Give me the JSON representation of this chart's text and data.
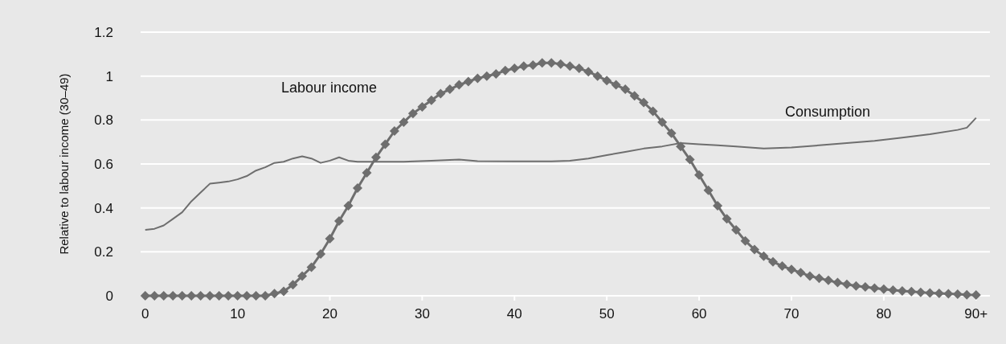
{
  "chart_data": {
    "type": "line",
    "ylabel": "Relative to labour income (30–49)",
    "xlim": [
      -0.5,
      91.5
    ],
    "xticks": [
      0,
      10,
      20,
      30,
      40,
      50,
      60,
      70,
      80,
      {
        "value": 90,
        "label": "90+"
      }
    ],
    "ylim": [
      0,
      1.2
    ],
    "yticks": [
      0,
      0.2,
      0.4,
      0.6,
      0.8,
      1,
      1.2
    ],
    "grid": "y",
    "series": [
      {
        "name": "Labour income",
        "color": "#6e6e6e",
        "marker": "diamond",
        "x": [
          0,
          1,
          2,
          3,
          4,
          5,
          6,
          7,
          8,
          9,
          10,
          11,
          12,
          13,
          14,
          15,
          16,
          17,
          18,
          19,
          20,
          21,
          22,
          23,
          24,
          25,
          26,
          27,
          28,
          29,
          30,
          31,
          32,
          33,
          34,
          35,
          36,
          37,
          38,
          39,
          40,
          41,
          42,
          43,
          44,
          45,
          46,
          47,
          48,
          49,
          50,
          51,
          52,
          53,
          54,
          55,
          56,
          57,
          58,
          59,
          60,
          61,
          62,
          63,
          64,
          65,
          66,
          67,
          68,
          69,
          70,
          71,
          72,
          73,
          74,
          75,
          76,
          77,
          78,
          79,
          80,
          81,
          82,
          83,
          84,
          85,
          86,
          87,
          88,
          89,
          90
        ],
        "values": [
          0,
          0,
          0,
          0,
          0,
          0,
          0,
          0,
          0,
          0,
          0,
          0,
          0,
          0,
          0.01,
          0.02,
          0.05,
          0.09,
          0.13,
          0.19,
          0.26,
          0.34,
          0.41,
          0.49,
          0.56,
          0.63,
          0.69,
          0.75,
          0.79,
          0.83,
          0.86,
          0.89,
          0.92,
          0.94,
          0.96,
          0.975,
          0.99,
          1,
          1.01,
          1.025,
          1.035,
          1.045,
          1.05,
          1.06,
          1.06,
          1.055,
          1.045,
          1.035,
          1.02,
          1,
          0.98,
          0.96,
          0.94,
          0.91,
          0.88,
          0.84,
          0.79,
          0.74,
          0.68,
          0.62,
          0.55,
          0.48,
          0.41,
          0.35,
          0.3,
          0.25,
          0.21,
          0.18,
          0.155,
          0.135,
          0.12,
          0.105,
          0.09,
          0.08,
          0.07,
          0.06,
          0.052,
          0.045,
          0.04,
          0.035,
          0.03,
          0.026,
          0.022,
          0.019,
          0.016,
          0.013,
          0.011,
          0.009,
          0.007,
          0.005,
          0.004
        ]
      },
      {
        "name": "Consumption",
        "color": "#6e6e6e",
        "marker": "none",
        "x": [
          0,
          1,
          2,
          3,
          4,
          5,
          6,
          7,
          8,
          9,
          10,
          11,
          12,
          13,
          14,
          15,
          16,
          17,
          18,
          19,
          20,
          21,
          22,
          23,
          25,
          28,
          31,
          34,
          36,
          40,
          44,
          46,
          48,
          50,
          52,
          54,
          56,
          58,
          60,
          62,
          64,
          67,
          70,
          73,
          76,
          79,
          82,
          85,
          88,
          89,
          90
        ],
        "values": [
          0.3,
          0.305,
          0.32,
          0.35,
          0.38,
          0.43,
          0.47,
          0.51,
          0.515,
          0.52,
          0.53,
          0.545,
          0.57,
          0.585,
          0.605,
          0.61,
          0.625,
          0.635,
          0.625,
          0.605,
          0.615,
          0.63,
          0.615,
          0.61,
          0.61,
          0.61,
          0.615,
          0.62,
          0.613,
          0.612,
          0.612,
          0.615,
          0.625,
          0.64,
          0.655,
          0.67,
          0.68,
          0.695,
          0.69,
          0.685,
          0.68,
          0.67,
          0.675,
          0.685,
          0.695,
          0.705,
          0.72,
          0.735,
          0.755,
          0.765,
          0.81
        ]
      }
    ]
  }
}
